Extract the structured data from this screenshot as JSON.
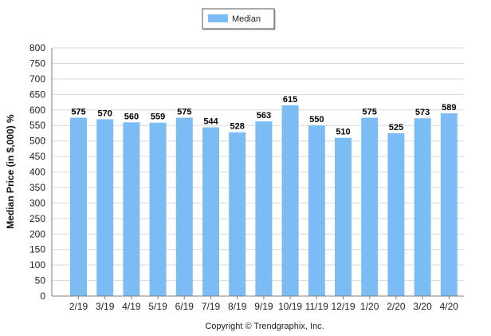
{
  "colors": {
    "bar": "#7cbcf4",
    "grid": "#d9d9d9",
    "axis": "#7f7f7f"
  },
  "caption": "Copyright © Trendgraphix, Inc.",
  "chart_data": {
    "type": "bar",
    "categories": [
      "2/19",
      "3/19",
      "4/19",
      "5/19",
      "6/19",
      "7/19",
      "8/19",
      "9/19",
      "10/19",
      "11/19",
      "12/19",
      "1/20",
      "2/20",
      "3/20",
      "4/20"
    ],
    "series": [
      {
        "name": "Median",
        "values": [
          575,
          570,
          560,
          559,
          575,
          544,
          528,
          563,
          615,
          550,
          510,
          575,
          525,
          573,
          589
        ]
      }
    ],
    "ylabel": "Median Price (in $,000) %",
    "xlabel": "",
    "ylim": [
      0,
      800
    ],
    "yticks": [
      0,
      50,
      100,
      150,
      200,
      250,
      300,
      350,
      400,
      450,
      500,
      550,
      600,
      650,
      700,
      750,
      800
    ],
    "grid": true,
    "legend_position": "top-center"
  }
}
